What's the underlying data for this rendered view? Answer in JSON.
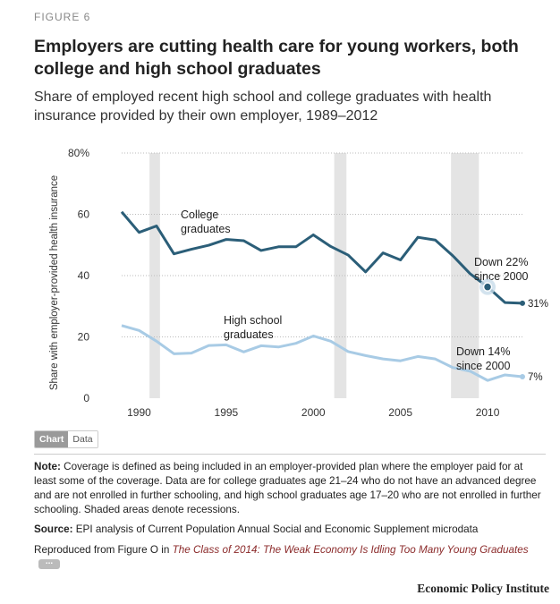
{
  "figure_label": "FIGURE 6",
  "title": "Employers are cutting health care for young workers, both college and high school graduates",
  "subtitle": "Share of employed recent high school and college graduates with health insurance provided by their own employer, 1989–2012",
  "toggle": {
    "chart": "Chart",
    "data": "Data"
  },
  "note": {
    "label": "Note:",
    "text": "Coverage is defined as being included in an employer-provided plan where the employer paid for at least some of the coverage. Data are for college graduates age 21–24 who do not have an advanced degree and are not enrolled in further schooling, and high school graduates age 17–20 who are not enrolled in further schooling. Shaded areas denote recessions."
  },
  "source": {
    "label": "Source:",
    "text": "EPI analysis of Current Population Annual Social and Economic Supplement microdata"
  },
  "reproduced": {
    "prefix": "Reproduced from Figure O in ",
    "link": "The Class of 2014: The Weak Economy Is Idling Too Many Young Graduates",
    "more": "..."
  },
  "brand": "Economic Policy Institute",
  "colors": {
    "college": "#2b5e78",
    "high_school": "#a8cbe5",
    "recession": "#e4e4e4",
    "grid": "#bbbbbb",
    "text": "#333333"
  },
  "chart_data": {
    "type": "line",
    "ylabel": "Share with employer-provided health insurance",
    "xlabel": "",
    "xlim": [
      1989,
      2012
    ],
    "ylim": [
      0,
      80
    ],
    "x_ticks": [
      1990,
      1995,
      2000,
      2005,
      2010
    ],
    "x_tick_labels": [
      "1990",
      "1995",
      "2000",
      "2005",
      "2010"
    ],
    "y_ticks": [
      0,
      20,
      40,
      60,
      80
    ],
    "y_tick_labels": [
      "0",
      "20",
      "40",
      "60",
      "80%"
    ],
    "grid": true,
    "recessions": [
      [
        1990.6,
        1991.2
      ],
      [
        2001.2,
        2001.9
      ],
      [
        2007.9,
        2009.5
      ]
    ],
    "series": [
      {
        "key": "college",
        "name": "College graduates",
        "label_lines": [
          "College",
          "graduates"
        ],
        "x": [
          1989,
          1990,
          1991,
          1992,
          1993,
          1994,
          1995,
          1996,
          1997,
          1998,
          1999,
          2000,
          2001,
          2002,
          2003,
          2004,
          2005,
          2006,
          2007,
          2008,
          2009,
          2010,
          2011,
          2012
        ],
        "values": [
          60.8,
          54.1,
          56.2,
          47.1,
          48.6,
          49.9,
          51.8,
          51.4,
          48.2,
          49.4,
          49.4,
          53.3,
          49.5,
          46.7,
          41.2,
          47.4,
          45.1,
          52.5,
          51.6,
          46.5,
          40.6,
          36.3,
          31.2,
          31.0
        ],
        "end_label": "31%",
        "annotation_lines": [
          "Down 22%",
          "since 2000"
        ],
        "highlight_x": 2010
      },
      {
        "key": "high_school",
        "name": "High school graduates",
        "label_lines": [
          "High school",
          "graduates"
        ],
        "x": [
          1989,
          1990,
          1991,
          1992,
          1993,
          1994,
          1995,
          1996,
          1997,
          1998,
          1999,
          2000,
          2001,
          2002,
          2003,
          2004,
          2005,
          2006,
          2007,
          2008,
          2009,
          2010,
          2011,
          2012
        ],
        "values": [
          23.7,
          22.1,
          18.6,
          14.5,
          14.7,
          17.2,
          17.4,
          15.1,
          17.1,
          16.7,
          17.9,
          20.3,
          18.6,
          15.2,
          13.9,
          12.8,
          12.2,
          13.6,
          12.8,
          10.0,
          8.8,
          5.8,
          7.6,
          7.0
        ],
        "end_label": "7%",
        "annotation_lines": [
          "Down 14%",
          "since 2000"
        ]
      }
    ]
  }
}
